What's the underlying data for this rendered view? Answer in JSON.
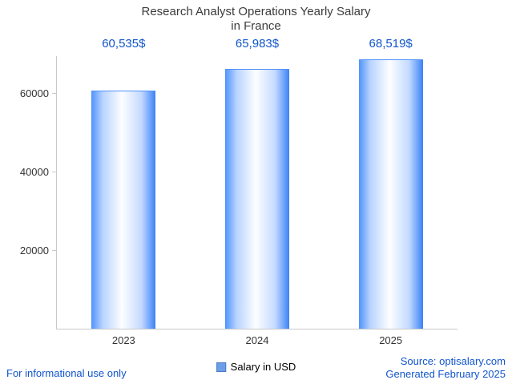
{
  "title": {
    "line1": "Research Analyst Operations Yearly Salary",
    "line2": "in France"
  },
  "chart_data": {
    "type": "bar",
    "categories": [
      "2023",
      "2024",
      "2025"
    ],
    "values": [
      60535,
      65983,
      68519
    ],
    "value_labels": [
      "60,535$",
      "65,983$",
      "68,519$"
    ],
    "series_name": "Salary in USD",
    "title": "Research Analyst Operations Yearly Salary in France",
    "xlabel": "",
    "ylabel": "",
    "yticks": [
      20000,
      40000,
      60000
    ],
    "ylim": [
      0,
      69500
    ],
    "grid": false,
    "legend_position": "bottom-center",
    "bar_color_edge": "#3b82f6",
    "bar_color_center": "#ffffff",
    "value_label_color": "#1155cc"
  },
  "legend": {
    "label": "Salary in USD",
    "swatch_color": "#6d9ee8"
  },
  "footer": {
    "left": "For informational use only",
    "source": "Source: optisalary.com",
    "generated": "Generated February 2025"
  }
}
